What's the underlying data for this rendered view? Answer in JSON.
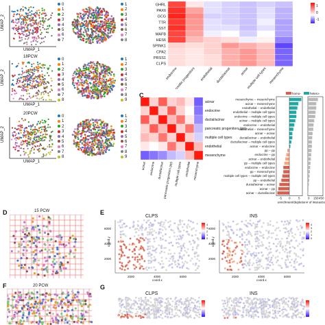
{
  "panel_labels": {
    "C": "C",
    "D": "D",
    "E": "E",
    "F": "F",
    "G": "G"
  },
  "panelA": {
    "rows": [
      {
        "title": "",
        "cluster_count": 8
      },
      {
        "title": "18PCW",
        "cluster_count": 9
      },
      {
        "title": "20PCW",
        "cluster_count": 9
      }
    ],
    "ylabel": "UMAP_2",
    "xlabel": "UMAP_1",
    "cluster_colors": [
      "#1f77b4",
      "#ff7f0e",
      "#2ca02c",
      "#d62728",
      "#9467bd",
      "#8c564b",
      "#e377c2",
      "#7f7f7f",
      "#bcbd22"
    ]
  },
  "heatmapB": {
    "genes": [
      "GHRL",
      "PAX6",
      "GCG",
      "TTR",
      "SST",
      "MAFB",
      "HES6",
      "SPINK1",
      "CPA2",
      "PRSS1",
      "CLPS"
    ],
    "celltypes": [
      "endocrine",
      "pancreatic progenitors",
      "endothelial",
      "ductal/acinar",
      "acinar",
      "multiple cell types",
      "mesenchyme"
    ],
    "values": [
      [
        1.6,
        0.2,
        -0.2,
        -0.3,
        -0.4,
        -0.3,
        -0.4
      ],
      [
        1.8,
        0.8,
        -0.2,
        -0.3,
        -0.4,
        -0.2,
        -0.5
      ],
      [
        1.9,
        1.0,
        -0.3,
        -0.3,
        -0.4,
        -0.2,
        -0.5
      ],
      [
        1.7,
        0.9,
        -0.2,
        -0.3,
        -0.4,
        -0.1,
        -0.6
      ],
      [
        1.8,
        0.9,
        -0.2,
        -0.2,
        -0.4,
        -0.2,
        -0.6
      ],
      [
        1.6,
        0.8,
        -0.1,
        0.0,
        -0.3,
        0.0,
        -0.6
      ],
      [
        1.6,
        0.6,
        0.4,
        0.3,
        -0.1,
        0.1,
        -0.8
      ],
      [
        0.4,
        0.3,
        0.4,
        0.9,
        0.7,
        0.5,
        -1.2
      ],
      [
        0.3,
        0.2,
        0.4,
        0.7,
        0.9,
        0.6,
        -1.0
      ],
      [
        0.3,
        0.2,
        0.3,
        0.7,
        0.9,
        0.6,
        -1.0
      ],
      [
        0.3,
        0.2,
        0.3,
        0.7,
        0.9,
        0.6,
        -1.0
      ]
    ],
    "colorbar_ticks": [
      "1",
      "0",
      "-1"
    ]
  },
  "matrixC": {
    "labels": [
      "acinar",
      "endocrine",
      "ductal/acinar",
      "pancreatic progenitors (pp)",
      "multiple cell types",
      "endothelial",
      "mesenchyme"
    ],
    "values": [
      [
        1.0,
        0.2,
        0.7,
        0.2,
        0.3,
        0.1,
        -0.7
      ],
      [
        0.2,
        1.0,
        0.2,
        0.7,
        0.2,
        0.0,
        -0.6
      ],
      [
        0.7,
        0.2,
        1.0,
        0.3,
        0.6,
        0.1,
        -0.5
      ],
      [
        0.2,
        0.7,
        0.3,
        1.0,
        0.2,
        0.6,
        -0.3
      ],
      [
        0.3,
        0.2,
        0.6,
        0.2,
        1.0,
        0.2,
        -0.2
      ],
      [
        0.1,
        0.0,
        0.1,
        0.6,
        0.2,
        1.0,
        0.3
      ],
      [
        -0.7,
        -0.6,
        -0.5,
        -0.3,
        -0.2,
        0.3,
        1.0
      ]
    ]
  },
  "chart_data": {
    "type": "bar",
    "categories": [
      "mesenchyme -- mesenchyme",
      "acinar -- mesenchyme",
      "endothelial -- endothelial",
      "endothelial -- multiple cell types",
      "endocrine -- multiple cell types",
      "acinar -- multiple cell types",
      "endocrine -- endothelial",
      "endothelial -- mesenchyme",
      "acinar -- acinar",
      "ductal/acinar -- endothelial",
      "ductal/acinar -- multiple cell types",
      "acinar -- endocrine",
      "pp -- pp",
      "endocrine -- pp",
      "acinar -- endothelial",
      "pp -- multiple cell types",
      "endocrine -- endocrine",
      "pp -- mesenchyme",
      "multiple cell types -- multiple cell types",
      "pp -- endothelial",
      "ductal/acinar -- acinar",
      "acinar -- pp",
      "acinar -- ductal/acinar"
    ],
    "series": [
      {
        "name": "homo-",
        "values": [
          6,
          4.5,
          4,
          3.5,
          3.5,
          3,
          2.5,
          2,
          1.5,
          1.5,
          1,
          0.5,
          -1,
          -1.5,
          -2,
          -2.5,
          -3,
          -3,
          -3.5,
          -4,
          -5,
          -5.5,
          -6
        ]
      },
      {
        "name": "hetero-",
        "values": [
          300,
          250,
          250,
          230,
          220,
          190,
          170,
          160,
          140,
          130,
          120,
          120,
          110,
          100,
          90,
          80,
          70,
          60,
          50,
          40,
          30,
          20,
          10
        ]
      }
    ],
    "xlabel": "enrichment/depletion",
    "xlabel2": "# of interactions",
    "ticks1": [
      "-5",
      "0",
      "5"
    ],
    "ticks2": [
      "0",
      "150",
      "450"
    ],
    "legend": [
      "homo-",
      "hetero-"
    ],
    "colors": {
      "neg": "#f4a582",
      "negStrong": "#d6604d",
      "pos": "#1fa9a6"
    }
  },
  "panelD": {
    "title": "15 PCW"
  },
  "panelE": {
    "genes": [
      "CLPS",
      "INS"
    ],
    "xlabel": "coord.x",
    "ylabel": "coord.y",
    "xticks": [
      "2000",
      "4000",
      "6000"
    ],
    "yticks": [
      "6000",
      "4000",
      "2000"
    ],
    "legend_ticks": [
      "4",
      "3",
      "2",
      "1",
      "0"
    ]
  },
  "panelF": {
    "title": "20 PCW"
  },
  "panelG": {
    "genes": [
      "CLPS",
      "INS"
    ]
  }
}
